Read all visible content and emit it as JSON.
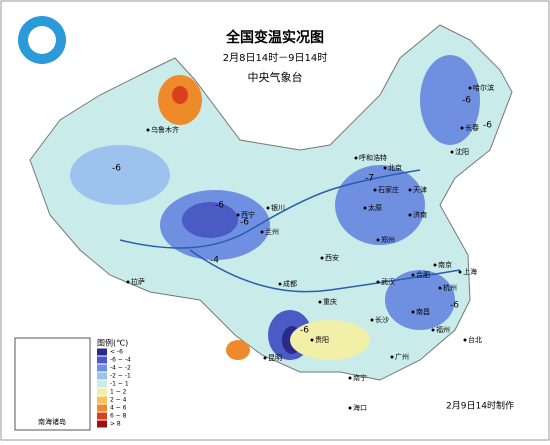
{
  "header": {
    "title": "全国变温实况图",
    "subtitle": "2月8日14时－9日14时",
    "agency": "中央气象台"
  },
  "legend": {
    "title": "图例(℃)",
    "items": [
      {
        "label": "< -6",
        "color": "#2a2a8c"
      },
      {
        "label": "-6 ~ -4",
        "color": "#4a5bc4"
      },
      {
        "label": "-4 ~ -2",
        "color": "#6f8fe0"
      },
      {
        "label": "-2 ~ -1",
        "color": "#9dc2ee"
      },
      {
        "label": "-1 ~ 1",
        "color": "#c9ecea"
      },
      {
        "label": "1 ~ 2",
        "color": "#f2f0a8"
      },
      {
        "label": "2 ~ 4",
        "color": "#f5c35a"
      },
      {
        "label": "4 ~ 6",
        "color": "#ee8a2a"
      },
      {
        "label": "6 ~ 8",
        "color": "#d8401e"
      },
      {
        "label": "> 8",
        "color": "#a01010"
      }
    ]
  },
  "cities": [
    "乌鲁木齐",
    "哈尔滨",
    "长春",
    "沈阳",
    "呼和浩特",
    "北京",
    "天津",
    "石家庄",
    "太原",
    "济南",
    "银川",
    "西宁",
    "兰州",
    "西安",
    "郑州",
    "合肥",
    "南京",
    "上海",
    "武汉",
    "杭州",
    "成都",
    "重庆",
    "长沙",
    "南昌",
    "福州",
    "贵阳",
    "昆明",
    "广州",
    "南宁",
    "海口",
    "台北",
    "拉萨"
  ],
  "isotherm_labels": [
    -6,
    -6,
    -6,
    -6,
    -7,
    -6,
    -4,
    -6,
    -6
  ],
  "inset": "南海诸岛",
  "footer": "2月9日14时制作"
}
